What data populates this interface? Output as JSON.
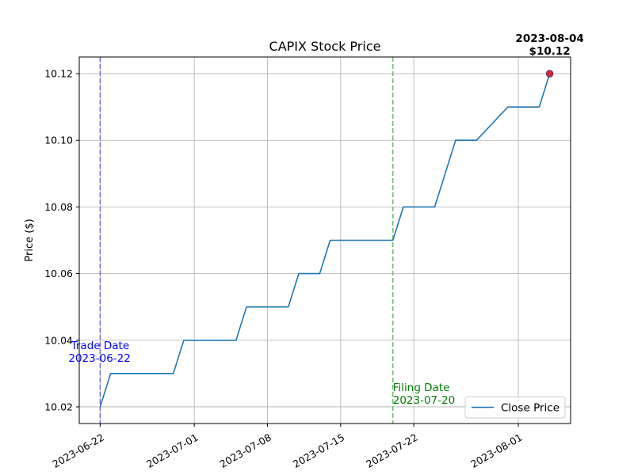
{
  "chart_data": {
    "type": "line",
    "title": "CAPIX Stock Price",
    "xlabel": "",
    "ylabel": "Price ($)",
    "x_ticks": [
      "2023-06-22",
      "2023-07-01",
      "2023-07-08",
      "2023-07-15",
      "2023-07-22",
      "2023-08-01"
    ],
    "y_ticks": [
      "10.02",
      "10.04",
      "10.06",
      "10.08",
      "10.10",
      "10.12"
    ],
    "xlim": [
      "2023-06-20",
      "2023-08-06"
    ],
    "ylim": [
      10.015,
      10.125
    ],
    "grid": true,
    "legend_position": "lower-right",
    "series": [
      {
        "name": "Close Price",
        "color": "#1f77b4",
        "points": [
          {
            "x": "2023-06-22",
            "y": 10.02
          },
          {
            "x": "2023-06-23",
            "y": 10.03
          },
          {
            "x": "2023-06-26",
            "y": 10.03
          },
          {
            "x": "2023-06-27",
            "y": 10.03
          },
          {
            "x": "2023-06-28",
            "y": 10.03
          },
          {
            "x": "2023-06-29",
            "y": 10.03
          },
          {
            "x": "2023-06-30",
            "y": 10.04
          },
          {
            "x": "2023-07-03",
            "y": 10.04
          },
          {
            "x": "2023-07-05",
            "y": 10.04
          },
          {
            "x": "2023-07-06",
            "y": 10.05
          },
          {
            "x": "2023-07-07",
            "y": 10.05
          },
          {
            "x": "2023-07-10",
            "y": 10.05
          },
          {
            "x": "2023-07-11",
            "y": 10.06
          },
          {
            "x": "2023-07-12",
            "y": 10.06
          },
          {
            "x": "2023-07-13",
            "y": 10.06
          },
          {
            "x": "2023-07-14",
            "y": 10.07
          },
          {
            "x": "2023-07-17",
            "y": 10.07
          },
          {
            "x": "2023-07-18",
            "y": 10.07
          },
          {
            "x": "2023-07-19",
            "y": 10.07
          },
          {
            "x": "2023-07-20",
            "y": 10.07
          },
          {
            "x": "2023-07-21",
            "y": 10.08
          },
          {
            "x": "2023-07-24",
            "y": 10.08
          },
          {
            "x": "2023-07-25",
            "y": 10.09
          },
          {
            "x": "2023-07-26",
            "y": 10.1
          },
          {
            "x": "2023-07-27",
            "y": 10.1
          },
          {
            "x": "2023-07-28",
            "y": 10.1
          },
          {
            "x": "2023-07-31",
            "y": 10.11
          },
          {
            "x": "2023-08-01",
            "y": 10.11
          },
          {
            "x": "2023-08-02",
            "y": 10.11
          },
          {
            "x": "2023-08-03",
            "y": 10.11
          },
          {
            "x": "2023-08-04",
            "y": 10.12
          }
        ]
      }
    ],
    "annotations": {
      "trade_date": {
        "label": "Trade Date",
        "date": "2023-06-22",
        "color": "#0000ff",
        "line_color": "#6a6ad8"
      },
      "filing_date": {
        "label": "Filing Date",
        "date": "2023-07-20",
        "color": "#008000",
        "line_color": "#6dbf6d"
      },
      "last_point": {
        "date": "2023-08-04",
        "price_text": "$10.12",
        "value": 10.12,
        "marker_color": "#d62728"
      }
    }
  }
}
